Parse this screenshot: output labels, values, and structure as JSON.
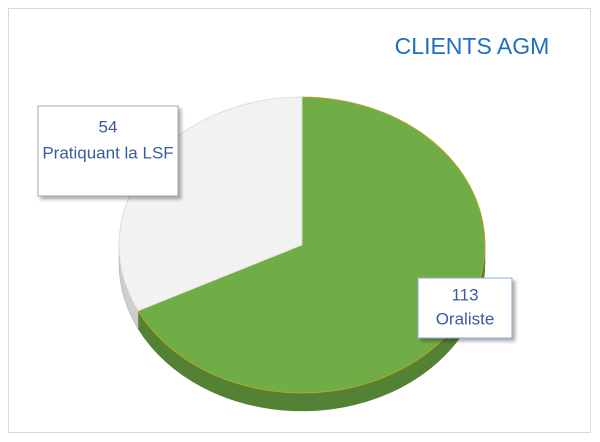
{
  "chart_data": {
    "type": "pie",
    "title": "CLIENTS AGM",
    "categories": [
      "Oraliste",
      "Pratiquant la LSF"
    ],
    "values": [
      113,
      54
    ],
    "colors": [
      "#70ad47",
      "#f2f2f2"
    ]
  }
}
